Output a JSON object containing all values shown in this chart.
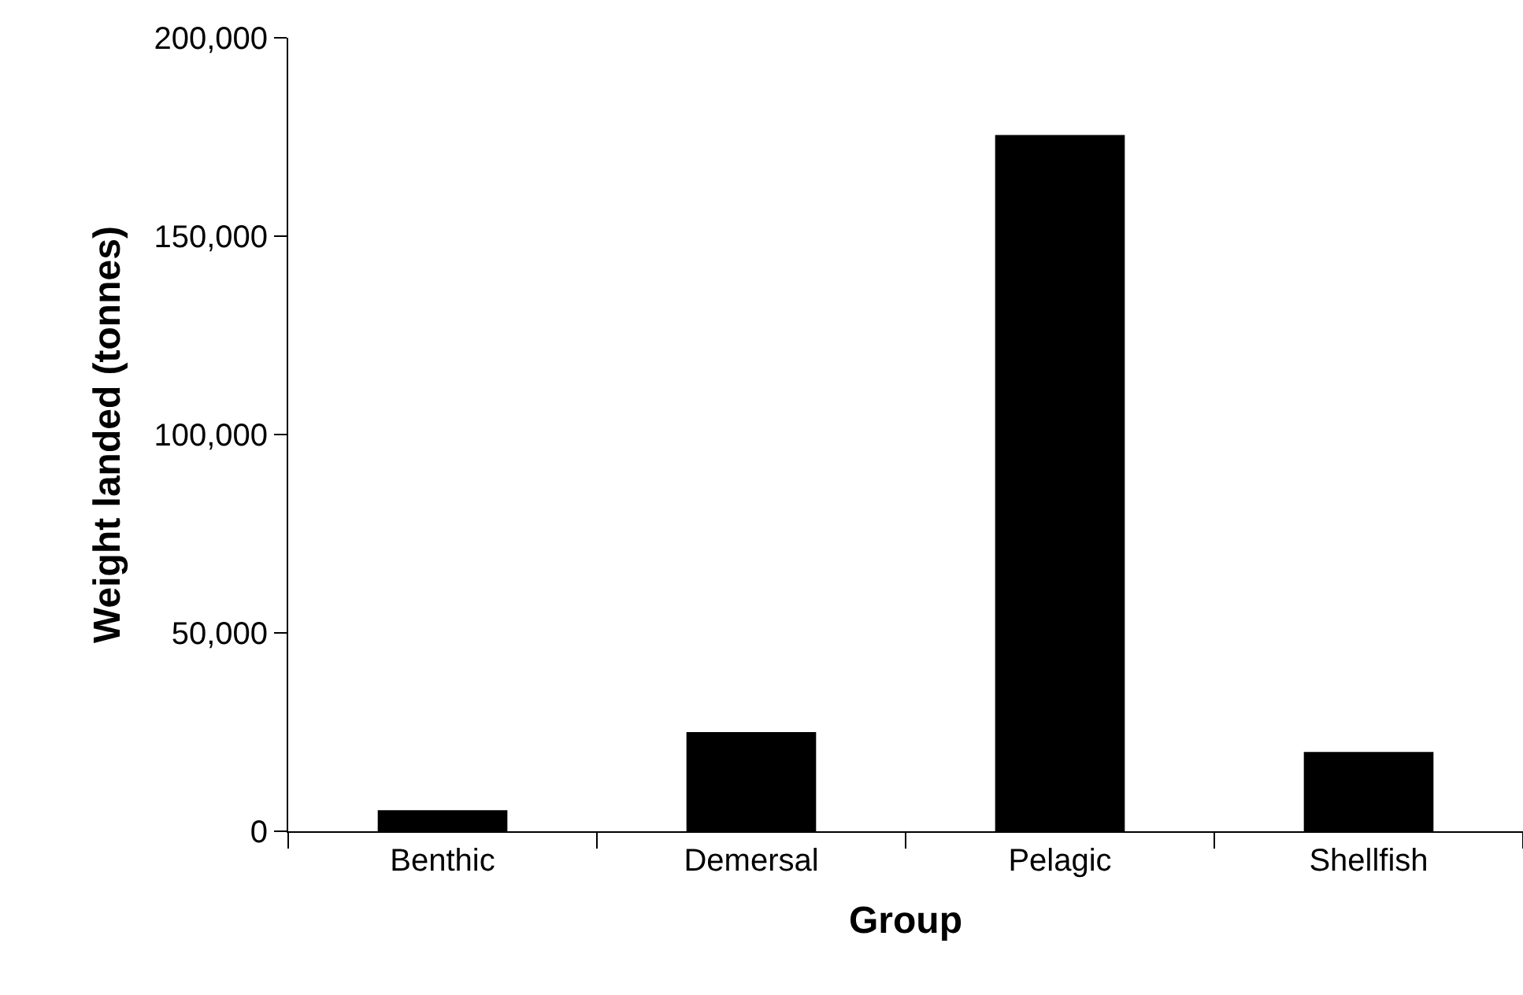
{
  "chart_data": {
    "type": "bar",
    "xlabel": "Group",
    "ylabel": "Weight landed (tonnes)",
    "categories": [
      "Benthic",
      "Demersal",
      "Pelagic",
      "Shellfish"
    ],
    "series": [
      {
        "color": "#000000",
        "values": [
          5300,
          25000,
          175500,
          20000
        ]
      }
    ],
    "ylim": [
      0,
      200000
    ],
    "yticks": [
      {
        "value": 0,
        "label": "0"
      },
      {
        "value": 50000,
        "label": "50,000"
      },
      {
        "value": 100000,
        "label": "100,000"
      },
      {
        "value": 150000,
        "label": "150,000"
      },
      {
        "value": 200000,
        "label": "200,000"
      }
    ],
    "tick_labels": "xy"
  }
}
